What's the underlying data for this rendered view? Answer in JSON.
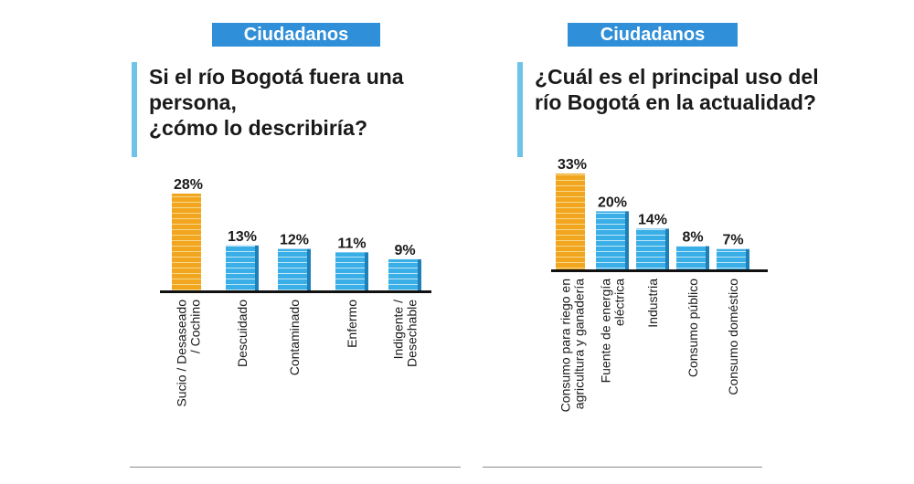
{
  "colors": {
    "badge": "#2f8fd8",
    "accent": "#6ec3e6",
    "highlight": "#f2a51f",
    "bar": "#3aaee6",
    "bar_side": "#1f7fb8",
    "axis": "#111111"
  },
  "panels": [
    {
      "badge": "Ciudadanos",
      "question": "Si el río Bogotá fuera una persona,\n¿cómo lo describiría?"
    },
    {
      "badge": "Ciudadanos",
      "question": "¿Cuál es el principal uso del\nrío Bogotá en la actualidad?"
    }
  ],
  "chart_data": [
    {
      "type": "bar",
      "title": "Si el río Bogotá fuera una persona, ¿cómo lo describiría?",
      "categories": [
        "Sucio / Desaseado / Cochino",
        "Descuidado",
        "Contaminado",
        "Enfermo",
        "Indigente / Desechable"
      ],
      "values": [
        28,
        13,
        12,
        11,
        9
      ],
      "value_labels": [
        "28%",
        "13%",
        "12%",
        "11%",
        "9%"
      ],
      "category_lines": [
        [
          "Sucio / Desaseado",
          "/ Cochino"
        ],
        [
          "Descuidado"
        ],
        [
          "Contaminado"
        ],
        [
          "Enfermo"
        ],
        [
          "Indigente /",
          "Desechable"
        ]
      ],
      "highlight_index": 0,
      "unit": "%",
      "xlabel": "",
      "ylabel": ""
    },
    {
      "type": "bar",
      "title": "¿Cuál es el principal uso del río Bogotá en la actualidad?",
      "categories": [
        "Consumo para riego en agricultura y ganadería",
        "Fuente de energía eléctrica",
        "Industria",
        "Consumo público",
        "Consumo doméstico"
      ],
      "values": [
        33,
        20,
        14,
        8,
        7
      ],
      "value_labels": [
        "33%",
        "20%",
        "14%",
        "8%",
        "7%"
      ],
      "category_lines": [
        [
          "Consumo para riego en",
          "agricultura y ganadería"
        ],
        [
          "Fuente de energía",
          "eléctrica"
        ],
        [
          "Industria"
        ],
        [
          "Consumo público"
        ],
        [
          "Consumo doméstico"
        ]
      ],
      "highlight_index": 0,
      "unit": "%",
      "xlabel": "",
      "ylabel": ""
    }
  ]
}
